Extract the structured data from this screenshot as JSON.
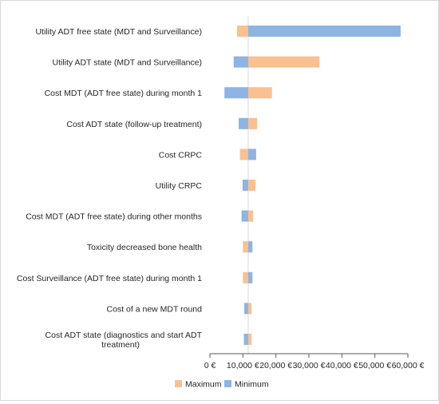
{
  "chart_data": {
    "type": "bar",
    "orientation": "horizontal",
    "subtype": "tornado",
    "base_value": 11600,
    "categories": [
      "Utility ADT free state (MDT and Surveillance)",
      "Utility ADT state (MDT and Surveillance)",
      "Cost MDT (ADT free state) during month 1",
      "Cost ADT state (follow-up treatment)",
      "Cost CRPC",
      "Utility CRPC",
      "Cost MDT (ADT free state) during other months",
      "Toxicity decreased bone health",
      "Cost Surveillance (ADT free state) during month 1",
      "Cost of a new MDT round",
      "Cost ADT state (diagnostics and start ADT treatment)"
    ],
    "series": [
      {
        "name": "Maximum",
        "color": "#fac090",
        "values": [
          8200,
          33200,
          18800,
          14300,
          9100,
          13800,
          13100,
          10000,
          10000,
          12600,
          12600
        ]
      },
      {
        "name": "Minimum",
        "color": "#8db4e2",
        "values": [
          57800,
          7200,
          4400,
          8700,
          14000,
          9900,
          9600,
          12900,
          12900,
          10400,
          10300
        ]
      }
    ],
    "x_ticks": [
      "0 €",
      "10,000 €",
      "20,000 €",
      "30,000 €",
      "40,000 €",
      "50,000 €",
      "60,000 €"
    ],
    "xlim": [
      0,
      60000
    ],
    "legend_position": "bottom",
    "grid": false
  }
}
